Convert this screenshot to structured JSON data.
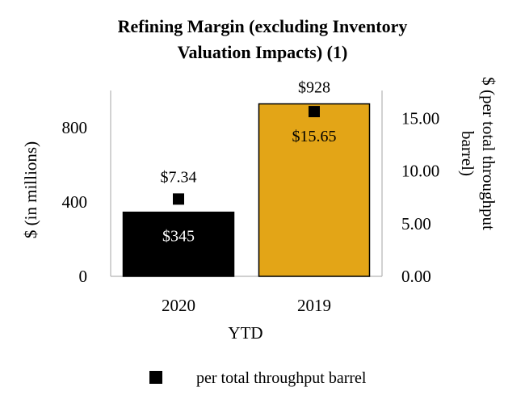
{
  "chart_data": {
    "type": "bar",
    "title_lines": [
      "Refining Margin (excluding Inventory",
      "Valuation Impacts) (1)"
    ],
    "xlabel": "YTD",
    "ylabel": "$ (in millions)",
    "y2label_lines": [
      "$ (per total throughput",
      "barrel)"
    ],
    "categories": [
      "2020",
      "2019"
    ],
    "series": [
      {
        "values": [
          345,
          928
        ],
        "value_labels": [
          "$345",
          "$928"
        ],
        "colors": [
          "#000000",
          "#E3A517"
        ],
        "axis": "left"
      },
      {
        "name": "per total throughput barrel",
        "type": "scatter",
        "marker": "square",
        "color": "#000000",
        "values": [
          7.34,
          15.65
        ],
        "value_labels": [
          "$7.34",
          "$15.65"
        ],
        "axis": "right"
      }
    ],
    "ylim": [
      0,
      1000
    ],
    "yticks": [
      0,
      400,
      800
    ],
    "ytick_labels": [
      "0",
      "400",
      "800"
    ],
    "y2lim": [
      0,
      17.65
    ],
    "y2ticks": [
      0,
      5,
      10,
      15
    ],
    "y2tick_labels": [
      "0.00",
      "5.00",
      "10.00",
      "15.00"
    ],
    "grid": false,
    "legend": {
      "placement": "bottom",
      "entries": [
        "per total throughput barrel"
      ]
    }
  }
}
